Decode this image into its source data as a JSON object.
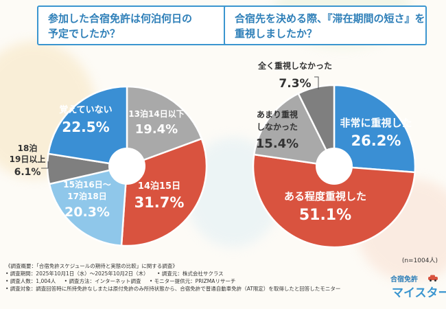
{
  "left_question": {
    "line1": "参加した合宿免許は何泊何日の",
    "line2": "予定でしたか？"
  },
  "right_question": {
    "line1": "合宿先を決める際、『滞在期間の短さ』を",
    "line2": "重視しましたか？"
  },
  "chart_data": [
    {
      "type": "pie",
      "donut": true,
      "title": "参加した合宿免許は何泊何日の予定でしたか？",
      "categories": [
        "13泊14日以下",
        "14泊15日",
        "15泊16日～17泊18日",
        "18泊19日以上",
        "覚えていない"
      ],
      "values": [
        19.4,
        31.7,
        20.3,
        6.1,
        22.5
      ],
      "colors": [
        "#a9a9a9",
        "#d9533f",
        "#8fc7ea",
        "#7f7f7f",
        "#3a8fd4"
      ],
      "label_lines": [
        [
          "13泊14日以下"
        ],
        [
          "14泊15日"
        ],
        [
          "15泊16日～",
          "17泊18日"
        ],
        [
          "18泊",
          "19日以上"
        ],
        [
          "覚えていない"
        ]
      ],
      "value_labels": [
        "19.4%",
        "31.7%",
        "20.3%",
        "6.1%",
        "22.5%"
      ]
    },
    {
      "type": "pie",
      "donut": true,
      "title": "合宿先を決める際、『滞在期間の短さ』を重視しましたか？",
      "categories": [
        "非常に重視した",
        "ある程度重視した",
        "あまり重視しなかった",
        "全く重視しなかった"
      ],
      "values": [
        26.2,
        51.1,
        15.4,
        7.3
      ],
      "colors": [
        "#3a8fd4",
        "#d9533f",
        "#a9a9a9",
        "#7f7f7f"
      ],
      "label_lines": [
        [
          "非常に重視した"
        ],
        [
          "ある程度重視した"
        ],
        [
          "あまり重視",
          "しなかった"
        ],
        [
          "全く重視しなかった"
        ]
      ],
      "value_labels": [
        "26.2%",
        "51.1%",
        "15.4%",
        "7.3%"
      ],
      "note": "(n=1004人)"
    }
  ],
  "footer": {
    "title": "《調査概要：「合宿免許スケジュールの期待と実態の比較」に関する調査》",
    "period": "• 調査期間：2025年10月1日（水）～2025年10月2日（木）",
    "source": "• 調査元：株式会社サクラス",
    "respondents": "• 調査人数：1,004人",
    "method": "• 調査方法：インターネット調査",
    "monitor": "• モニター提供元：PRIZMAリサーチ",
    "target": "• 調査対象：調査回答時に所持免許なしまたは原付免許のみ所持状態から、合宿免許で普通自動車免許（AT限定）を取得したと回答したモニター"
  },
  "logo": {
    "top": "合宿免許",
    "main": "マイスター"
  }
}
